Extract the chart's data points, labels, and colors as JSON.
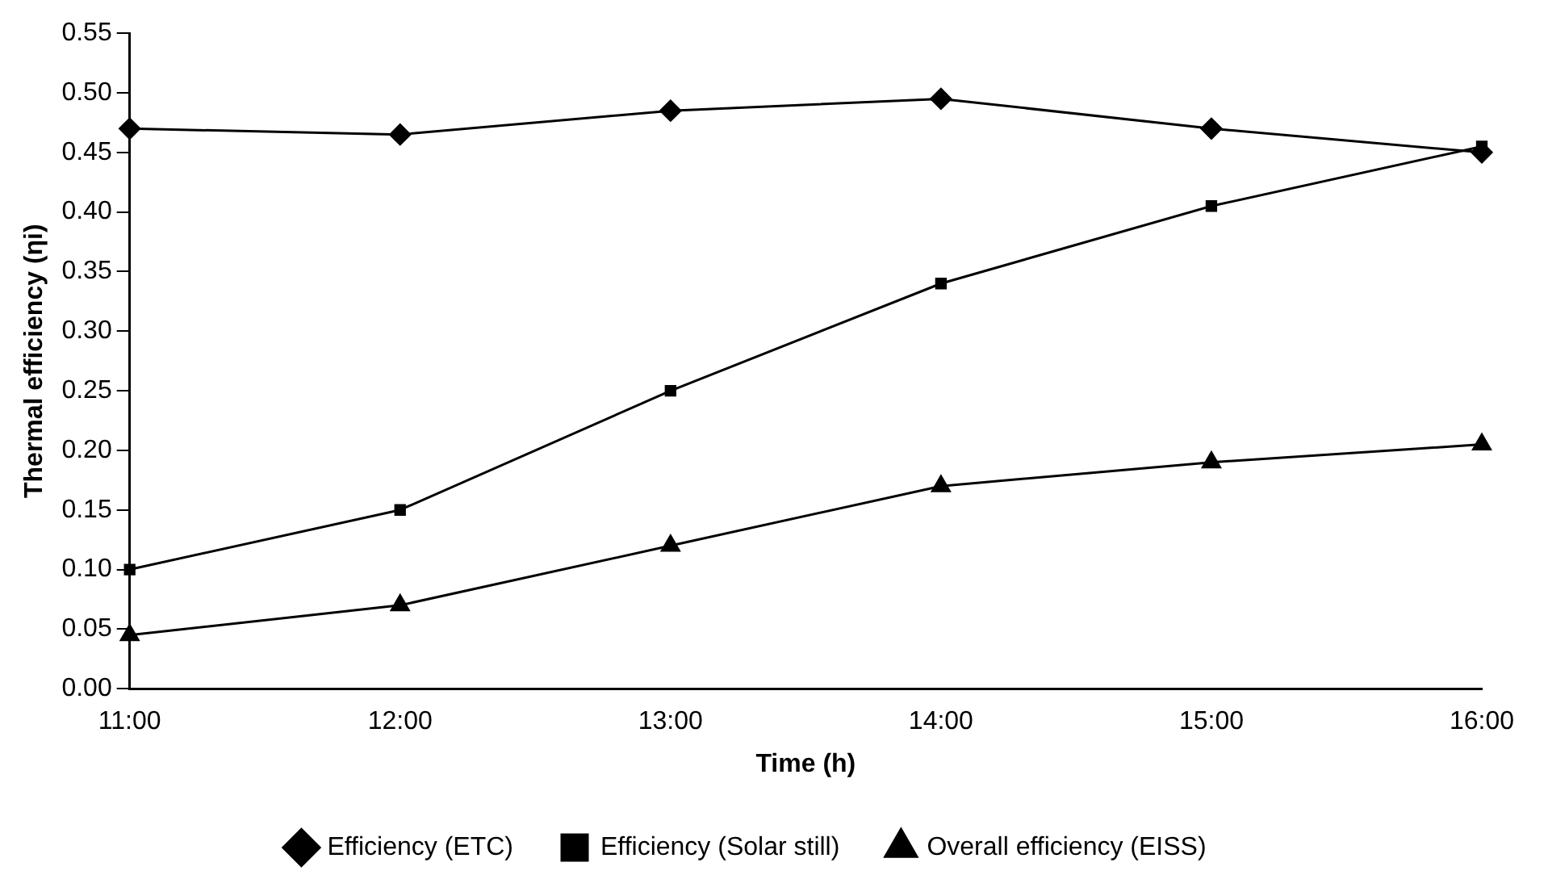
{
  "chart_data": {
    "type": "line",
    "xlabel": "Time (h)",
    "ylabel": "Thermal efficiency (ηi)",
    "categories": [
      "11:00",
      "12:00",
      "13:00",
      "14:00",
      "15:00",
      "16:00"
    ],
    "series": [
      {
        "name": "Efficiency (ETC)",
        "color": "#000000",
        "marker": "diamond",
        "values": [
          0.47,
          0.465,
          0.485,
          0.495,
          0.47,
          0.45
        ]
      },
      {
        "name": "Efficiency (Solar still)",
        "color": "#000000",
        "marker": "square",
        "values": [
          0.1,
          0.15,
          0.25,
          0.34,
          0.405,
          0.455
        ]
      },
      {
        "name": "Overall efficiency (EISS)",
        "color": "#000000",
        "marker": "triangle",
        "values": [
          0.045,
          0.07,
          0.12,
          0.17,
          0.19,
          0.205
        ]
      }
    ],
    "ylim": [
      0,
      0.55
    ],
    "yticks": [
      {
        "value": 0,
        "label": "0.00"
      },
      0.05,
      {
        "value": 0.1,
        "label": "0.10"
      },
      0.15,
      {
        "value": 0.2,
        "label": "0.20"
      },
      0.25,
      {
        "value": 0.3,
        "label": "0.30"
      },
      0.35,
      {
        "value": 0.4,
        "label": "0.40"
      },
      0.45,
      {
        "value": 0.5,
        "label": "0.50"
      },
      0.55
    ],
    "grid": false,
    "legend": "bottom",
    "line_style": "solid"
  }
}
